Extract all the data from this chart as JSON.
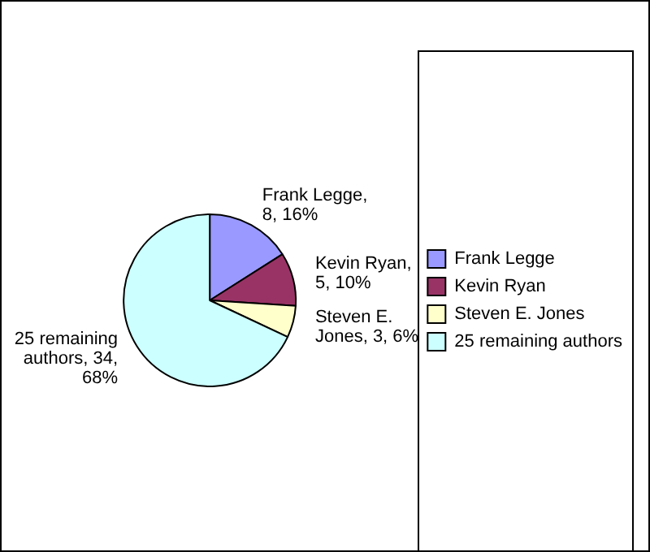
{
  "chart_data": {
    "type": "pie",
    "categories": [
      "Frank Legge",
      "Kevin Ryan",
      "Steven E. Jones",
      "25 remaining authors"
    ],
    "values": [
      8,
      5,
      3,
      34
    ],
    "colors": [
      "#9999ff",
      "#993366",
      "#ffffcc",
      "#ccffff"
    ],
    "value_labels": [
      "Frank Legge, 8, 16%",
      "Kevin Ryan, 5, 10%",
      "Steven E. Jones, 3, 6%",
      "25 remaining authors, 34, 68%"
    ],
    "legend": "right"
  }
}
